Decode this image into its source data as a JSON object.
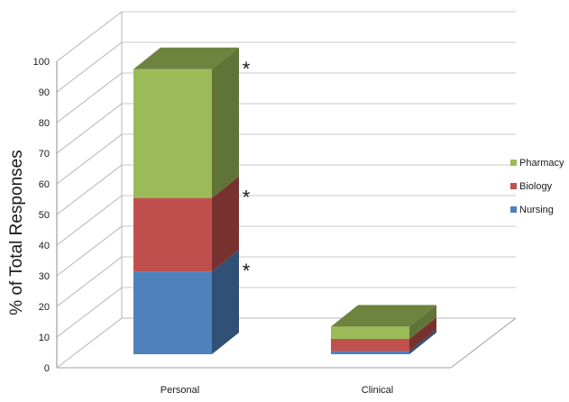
{
  "chart_data": {
    "type": "bar",
    "stacked": true,
    "three_d": true,
    "categories": [
      "Personal",
      "Clinical"
    ],
    "series": [
      {
        "name": "Nursing",
        "values": [
          27,
          1
        ],
        "color": "#4f81bd"
      },
      {
        "name": "Biology",
        "values": [
          24,
          4
        ],
        "color": "#c0504d"
      },
      {
        "name": "Pharmacy",
        "values": [
          42,
          4
        ],
        "color": "#9bbb59"
      }
    ],
    "ylabel": "% of Total Responses",
    "ylim": [
      0,
      100
    ],
    "ytick_step": 10,
    "grid": true,
    "legend": "right",
    "annotations": [
      "*",
      "*",
      "*"
    ]
  }
}
